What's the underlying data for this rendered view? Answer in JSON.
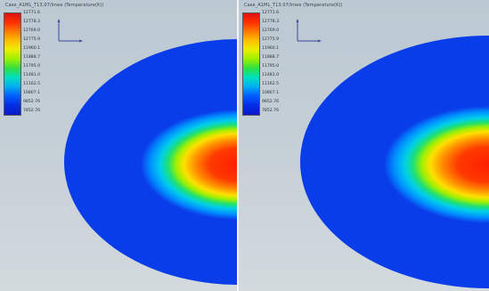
{
  "viewports": [
    {
      "id": "left",
      "title": "Case_A1ML_T13.07/lmee (Temperature(K))",
      "legend": [
        "12771.6",
        "12778.3",
        "12769.0",
        "12775.9",
        "11960.1",
        "11888.7",
        "11795.0",
        "11481.0",
        "11162.5",
        "10807.1",
        "9852.76",
        "7852.76"
      ]
    },
    {
      "id": "right",
      "title": "Case_A1ML_T13.07/lmee (Temperature(K))",
      "legend": [
        "12771.6",
        "12778.3",
        "12769.0",
        "12775.9",
        "11960.1",
        "11888.7",
        "11795.0",
        "11481.0",
        "11162.5",
        "10807.1",
        "9852.76",
        "7852.76"
      ]
    }
  ],
  "colors": {
    "hot": "#ff2a00",
    "cold": "#0a3dea",
    "background": "#c4ced6"
  }
}
